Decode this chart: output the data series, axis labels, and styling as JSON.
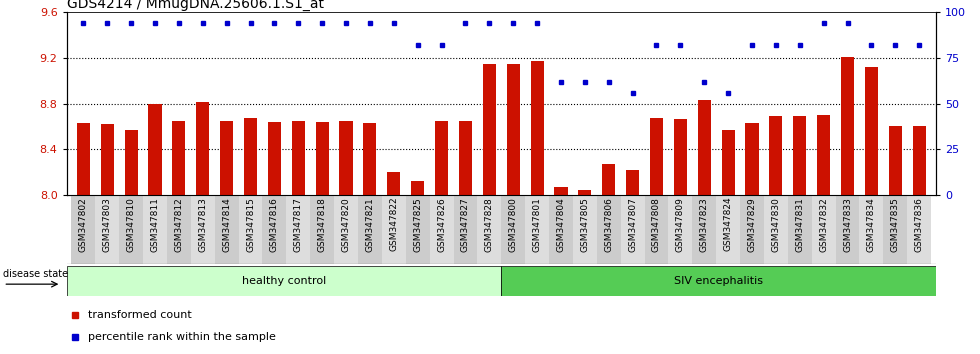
{
  "title": "GDS4214 / MmugDNA.25606.1.S1_at",
  "samples": [
    "GSM347802",
    "GSM347803",
    "GSM347810",
    "GSM347811",
    "GSM347812",
    "GSM347813",
    "GSM347814",
    "GSM347815",
    "GSM347816",
    "GSM347817",
    "GSM347818",
    "GSM347820",
    "GSM347821",
    "GSM347822",
    "GSM347825",
    "GSM347826",
    "GSM347827",
    "GSM347828",
    "GSM347800",
    "GSM347801",
    "GSM347804",
    "GSM347805",
    "GSM347806",
    "GSM347807",
    "GSM347808",
    "GSM347809",
    "GSM347823",
    "GSM347824",
    "GSM347829",
    "GSM347830",
    "GSM347831",
    "GSM347832",
    "GSM347833",
    "GSM347834",
    "GSM347835",
    "GSM347836"
  ],
  "bar_values": [
    8.63,
    8.62,
    8.57,
    8.8,
    8.65,
    8.81,
    8.65,
    8.67,
    8.64,
    8.65,
    8.64,
    8.65,
    8.63,
    8.2,
    8.12,
    8.65,
    8.65,
    9.15,
    9.15,
    9.17,
    8.07,
    8.04,
    8.27,
    8.22,
    8.67,
    8.66,
    8.83,
    8.57,
    8.63,
    8.69,
    8.69,
    8.7,
    9.21,
    9.12,
    8.6,
    8.6
  ],
  "percentile_values": [
    94,
    94,
    94,
    94,
    94,
    94,
    94,
    94,
    94,
    94,
    94,
    94,
    94,
    94,
    82,
    82,
    94,
    94,
    94,
    94,
    62,
    62,
    62,
    56,
    82,
    82,
    62,
    56,
    82,
    82,
    82,
    94,
    94,
    82,
    82,
    82
  ],
  "ylim_left": [
    8.0,
    9.6
  ],
  "ylim_right": [
    0,
    100
  ],
  "yticks_left": [
    8.0,
    8.4,
    8.8,
    9.2,
    9.6
  ],
  "yticks_right": [
    0,
    25,
    50,
    75,
    100
  ],
  "bar_color": "#cc1100",
  "dot_color": "#0000cc",
  "healthy_label": "healthy control",
  "siv_label": "SIV encephalitis",
  "healthy_count": 18,
  "legend_bar": "transformed count",
  "legend_dot": "percentile rank within the sample",
  "disease_state_label": "disease state",
  "bg_healthy": "#ccffcc",
  "bg_siv": "#55cc55",
  "title_fontsize": 10,
  "tick_fontsize": 6.5,
  "annot_fontsize": 8,
  "bar_width": 0.55
}
